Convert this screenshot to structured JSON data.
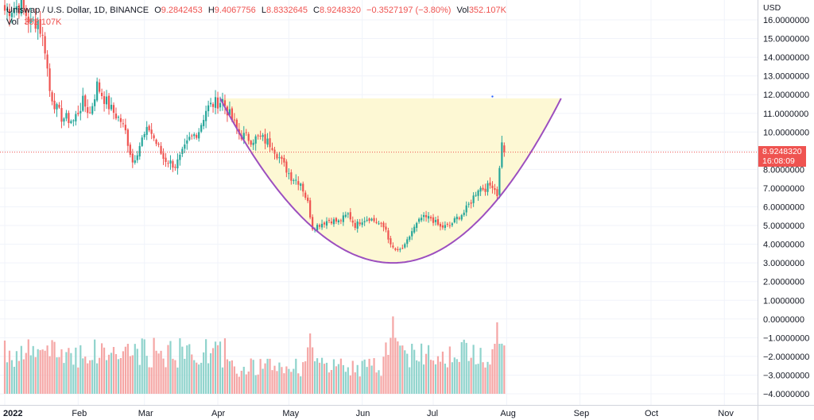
{
  "legend": {
    "symbol": "Uniswap / U.S. Dollar, 1D, BINANCE",
    "open_label": "O",
    "open": "9.2842453",
    "high_label": "H",
    "high": "9.4067756",
    "low_label": "L",
    "low": "8.8332645",
    "close_label": "C",
    "close": "8.9248320",
    "change": "−0.3527197 (−3.80%)",
    "vol_label": "Vol",
    "vol": "352.107K",
    "vol2_label": "Vol",
    "vol2": "352.107K"
  },
  "price_tag": {
    "price": "8.9248320",
    "countdown": "16:08:09"
  },
  "colors": {
    "up": "#26a69a",
    "down": "#ef5350",
    "up_vol": "#8fd3cc",
    "down_vol": "#f5a6a5",
    "cup_fill": "#fdf8d4",
    "cup_line": "#9c4fbf",
    "grid": "#f0f3fa"
  },
  "chart_data": {
    "type": "candlestick",
    "currency_label": "USD",
    "y_ticks": [
      "16.0000000",
      "15.0000000",
      "14.0000000",
      "13.0000000",
      "12.0000000",
      "11.0000000",
      "10.0000000",
      "9.0000000",
      "8.0000000",
      "7.0000000",
      "6.0000000",
      "5.0000000",
      "4.0000000",
      "3.0000000",
      "2.0000000",
      "1.0000000",
      "0.0000000",
      "−1.0000000",
      "−2.0000000",
      "−3.0000000",
      "−4.0000000"
    ],
    "y_tick_values": [
      16,
      15,
      14,
      13,
      12,
      11,
      10,
      9,
      8,
      7,
      6,
      5,
      4,
      3,
      2,
      1,
      0,
      -1,
      -2,
      -3,
      -4
    ],
    "x_ticks": [
      {
        "label": "2022",
        "x": "2022-01-01"
      },
      {
        "label": "Feb",
        "x": "2022-02-01"
      },
      {
        "label": "Mar",
        "x": "2022-03-01"
      },
      {
        "label": "Apr",
        "x": "2022-04-01"
      },
      {
        "label": "May",
        "x": "2022-05-01"
      },
      {
        "label": "Jun",
        "x": "2022-06-01"
      },
      {
        "label": "Jul",
        "x": "2022-07-01"
      },
      {
        "label": "Aug",
        "x": "2022-08-01"
      },
      {
        "label": "Sep",
        "x": "2022-09-01"
      },
      {
        "label": "Oct",
        "x": "2022-10-01"
      },
      {
        "label": "Nov",
        "x": "2022-11-01"
      }
    ],
    "ylim": [
      -4.5,
      16.5
    ],
    "xlim": [
      "2022-01-01",
      "2022-11-15"
    ],
    "last_price": 8.924832,
    "price_keypoints": [
      [
        "2022-01-01",
        16.5
      ],
      [
        "2022-01-08",
        16.8
      ],
      [
        "2022-01-12",
        15.8
      ],
      [
        "2022-01-15",
        16.0
      ],
      [
        "2022-01-18",
        14.5
      ],
      [
        "2022-01-20",
        12.2
      ],
      [
        "2022-01-23",
        11.2
      ],
      [
        "2022-01-25",
        10.8
      ],
      [
        "2022-01-30",
        10.6
      ],
      [
        "2022-02-03",
        11.6
      ],
      [
        "2022-02-06",
        11.0
      ],
      [
        "2022-02-09",
        12.5
      ],
      [
        "2022-02-12",
        11.8
      ],
      [
        "2022-02-15",
        11.2
      ],
      [
        "2022-02-19",
        10.6
      ],
      [
        "2022-02-21",
        10.0
      ],
      [
        "2022-02-24",
        8.4
      ],
      [
        "2022-02-28",
        9.6
      ],
      [
        "2022-03-03",
        10.2
      ],
      [
        "2022-03-06",
        9.4
      ],
      [
        "2022-03-09",
        8.6
      ],
      [
        "2022-03-14",
        8.2
      ],
      [
        "2022-03-16",
        8.6
      ],
      [
        "2022-03-20",
        9.6
      ],
      [
        "2022-03-24",
        10.1
      ],
      [
        "2022-03-27",
        11.2
      ],
      [
        "2022-03-30",
        11.5
      ],
      [
        "2022-04-03",
        11.7
      ],
      [
        "2022-04-06",
        10.9
      ],
      [
        "2022-04-10",
        9.9
      ],
      [
        "2022-04-15",
        9.6
      ],
      [
        "2022-04-19",
        9.7
      ],
      [
        "2022-04-24",
        9.3
      ],
      [
        "2022-04-28",
        8.4
      ],
      [
        "2022-05-02",
        7.6
      ],
      [
        "2022-05-06",
        7.3
      ],
      [
        "2022-05-09",
        6.2
      ],
      [
        "2022-05-11",
        4.9
      ],
      [
        "2022-05-13",
        5.0
      ],
      [
        "2022-05-18",
        5.3
      ],
      [
        "2022-05-22",
        5.2
      ],
      [
        "2022-05-26",
        5.6
      ],
      [
        "2022-05-29",
        5.0
      ],
      [
        "2022-06-01",
        5.3
      ],
      [
        "2022-06-04",
        5.4
      ],
      [
        "2022-06-08",
        5.1
      ],
      [
        "2022-06-11",
        4.8
      ],
      [
        "2022-06-13",
        3.9
      ],
      [
        "2022-06-16",
        3.6
      ],
      [
        "2022-06-19",
        3.9
      ],
      [
        "2022-06-22",
        4.7
      ],
      [
        "2022-06-26",
        5.4
      ],
      [
        "2022-06-30",
        5.4
      ],
      [
        "2022-07-04",
        4.9
      ],
      [
        "2022-07-08",
        5.0
      ],
      [
        "2022-07-11",
        5.4
      ],
      [
        "2022-07-14",
        5.7
      ],
      [
        "2022-07-17",
        6.3
      ],
      [
        "2022-07-20",
        7.0
      ],
      [
        "2022-07-23",
        7.0
      ],
      [
        "2022-07-26",
        7.2
      ],
      [
        "2022-07-28",
        6.7
      ],
      [
        "2022-07-29",
        8.0
      ],
      [
        "2022-07-30",
        9.6
      ],
      [
        "2022-07-31",
        8.92
      ]
    ],
    "volume_period_peaks": [
      [
        "2022-05-10",
        0.78
      ],
      [
        "2022-06-14",
        0.65
      ],
      [
        "2022-07-28",
        0.6
      ]
    ],
    "cup_pattern": {
      "rim_left": [
        "2022-04-02",
        11.8
      ],
      "bottom": [
        "2022-06-14",
        3.0
      ],
      "rim_right": [
        "2022-08-24",
        11.8
      ]
    },
    "markers": [
      {
        "x": "2022-07-26",
        "y": 11.9
      }
    ]
  }
}
